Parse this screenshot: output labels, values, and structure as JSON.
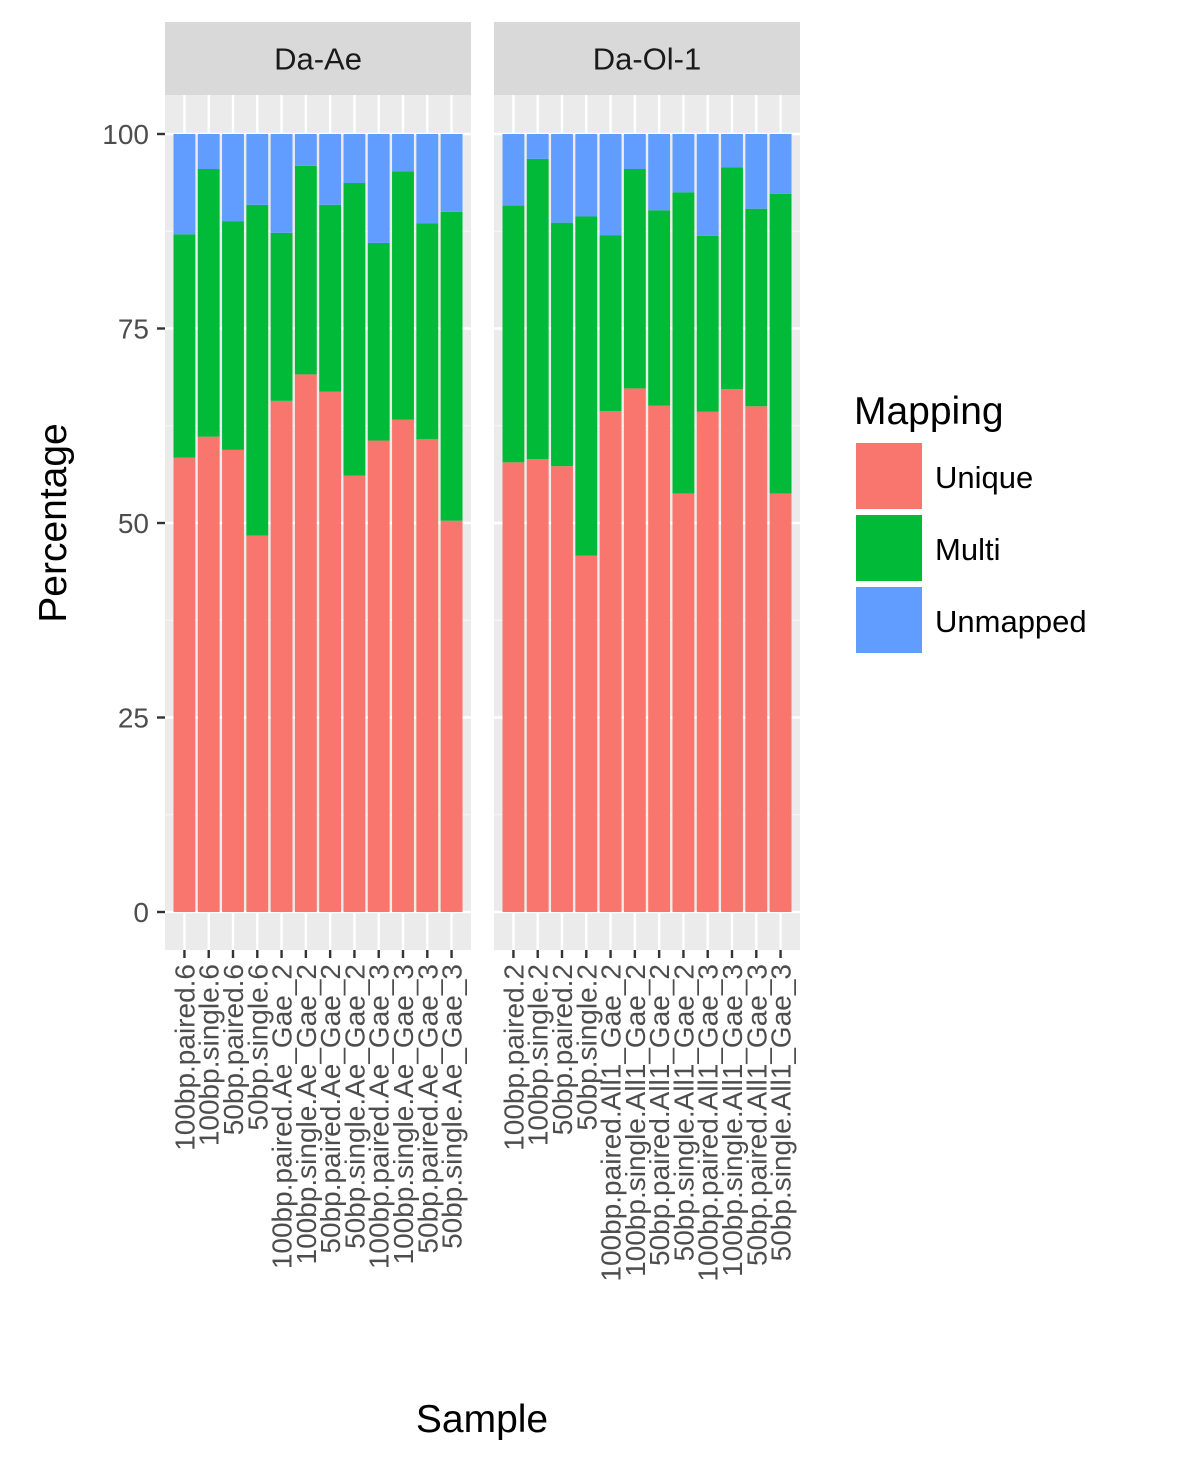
{
  "chart_data": {
    "type": "bar",
    "stacked": true,
    "xlabel": "Sample",
    "ylabel": "Percentage",
    "ylim": [
      0,
      105
    ],
    "y_ticks": [
      0,
      25,
      50,
      75,
      100
    ],
    "grid": true,
    "legend": {
      "title": "Mapping",
      "position": "right",
      "entries": [
        {
          "name": "Unique",
          "color": "#F8766D"
        },
        {
          "name": "Multi",
          "color": "#00BA38"
        },
        {
          "name": "Unmapped",
          "color": "#619CFF"
        }
      ]
    },
    "series_colors": {
      "Unique": "#F8766D",
      "Multi": "#00BA38",
      "Unmapped": "#619CFF"
    },
    "facets": [
      {
        "title": "Da-Ae",
        "categories": [
          "100bp.paired.6",
          "100bp.single.6",
          "50bp.paired.6",
          "50bp.single.6",
          "100bp.paired.Ae_Gae_2",
          "100bp.single.Ae_Gae_2",
          "50bp.paired.Ae_Gae_2",
          "50bp.single.Ae_Gae_2",
          "100bp.paired.Ae_Gae_3",
          "100bp.single.Ae_Gae_3",
          "50bp.paired.Ae_Gae_3",
          "50bp.single.Ae_Gae_3"
        ],
        "series": [
          {
            "name": "Unique",
            "values": [
              58.4,
              61.1,
              59.4,
              48.4,
              65.7,
              69.1,
              66.9,
              56.1,
              60.6,
              63.3,
              60.8,
              50.3
            ]
          },
          {
            "name": "Multi",
            "values": [
              28.7,
              34.4,
              29.4,
              42.5,
              21.6,
              26.8,
              24.0,
              37.6,
              25.4,
              31.9,
              27.7,
              39.7
            ]
          },
          {
            "name": "Unmapped",
            "values": [
              12.9,
              4.5,
              11.2,
              9.1,
              12.7,
              4.1,
              9.1,
              6.3,
              14.0,
              4.8,
              11.5,
              10.0
            ]
          }
        ]
      },
      {
        "title": "Da-Ol-1",
        "categories": [
          "100bp.paired.2",
          "100bp.single.2",
          "50bp.paired.2",
          "50bp.single.2",
          "100bp.paired.All1_Gae_2",
          "100bp.single.All1_Gae_2",
          "50bp.paired.All1_Gae_2",
          "50bp.single.All1_Gae_2",
          "100bp.paired.All1_Gae_3",
          "100bp.single.All1_Gae_3",
          "50bp.paired.All1_Gae_3",
          "50bp.single.All1_Gae_3"
        ],
        "series": [
          {
            "name": "Unique",
            "values": [
              57.8,
              58.2,
              57.3,
              45.8,
              64.4,
              67.3,
              65.1,
              53.8,
              64.3,
              67.2,
              65.0,
              53.8
            ]
          },
          {
            "name": "Multi",
            "values": [
              33.0,
              38.6,
              31.3,
              43.6,
              22.6,
              28.2,
              25.1,
              38.7,
              22.6,
              28.5,
              25.4,
              38.5
            ]
          },
          {
            "name": "Unmapped",
            "values": [
              9.2,
              3.2,
              11.4,
              10.6,
              13.0,
              4.5,
              9.8,
              7.5,
              13.1,
              4.3,
              9.6,
              7.7
            ]
          }
        ]
      }
    ]
  }
}
